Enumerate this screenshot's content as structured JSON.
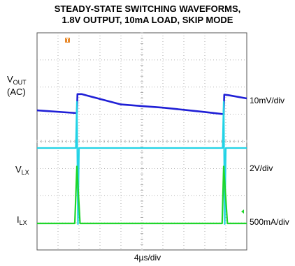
{
  "title": "STEADY-STATE SWITCHING WAVEFORMS,",
  "subtitle": "1.8V OUTPUT, 10mA LOAD, SKIP MODE",
  "time_scale": "4µs/div",
  "trigger_marker": "T",
  "channels": [
    {
      "label_main": "V",
      "label_sub": "OUT",
      "label_extra": "(AC)",
      "scale": "10mV/div",
      "color": "#1f1fd6"
    },
    {
      "label_main": "V",
      "label_sub": "LX",
      "label_extra": "",
      "scale": "2V/div",
      "color": "#22d3e6"
    },
    {
      "label_main": "I",
      "label_sub": "LX",
      "label_extra": "",
      "scale": "500mA/div",
      "color": "#1fd62a"
    }
  ],
  "colors": {
    "trigger": "#e8892a",
    "grid": "#9a9a9a",
    "frame": "#555555"
  },
  "chart_data": {
    "type": "line",
    "title": "STEADY-STATE SWITCHING WAVEFORMS, 1.8V OUTPUT, 10mA LOAD, SKIP MODE",
    "xlabel": "4µs/div",
    "x_divisions": 10,
    "y_divisions": 8,
    "grid": true,
    "series": [
      {
        "name": "VOUT (AC)",
        "scale": "10mV/div",
        "units": "mV",
        "x_us": [
          0,
          7.6,
          7.7,
          8.5,
          12,
          16,
          20,
          24,
          28,
          32,
          35.6,
          35.7,
          36.5,
          40
        ],
        "y": [
          -2.6,
          -3.6,
          3.4,
          3.4,
          1.6,
          -0.4,
          -1.0,
          -1.6,
          -2.4,
          -3.2,
          -4.0,
          3.2,
          3.0,
          1.8
        ]
      },
      {
        "name": "VLX",
        "scale": "2V/div",
        "units": "V",
        "x_us": [
          0,
          7.4,
          7.6,
          7.8,
          8.0,
          8.3,
          35.4,
          35.6,
          35.8,
          36.0,
          36.3,
          40
        ],
        "y": [
          1.8,
          1.8,
          5.2,
          -3.8,
          1.8,
          1.8,
          1.8,
          5.2,
          -3.8,
          1.8,
          1.8,
          1.8
        ]
      },
      {
        "name": "ILX",
        "scale": "500mA/div",
        "units": "mA",
        "x_us": [
          0,
          7.2,
          7.6,
          8.2,
          35.3,
          35.6,
          36.3,
          40
        ],
        "y": [
          0,
          0,
          1050,
          0,
          0,
          1050,
          0,
          0
        ]
      }
    ]
  }
}
